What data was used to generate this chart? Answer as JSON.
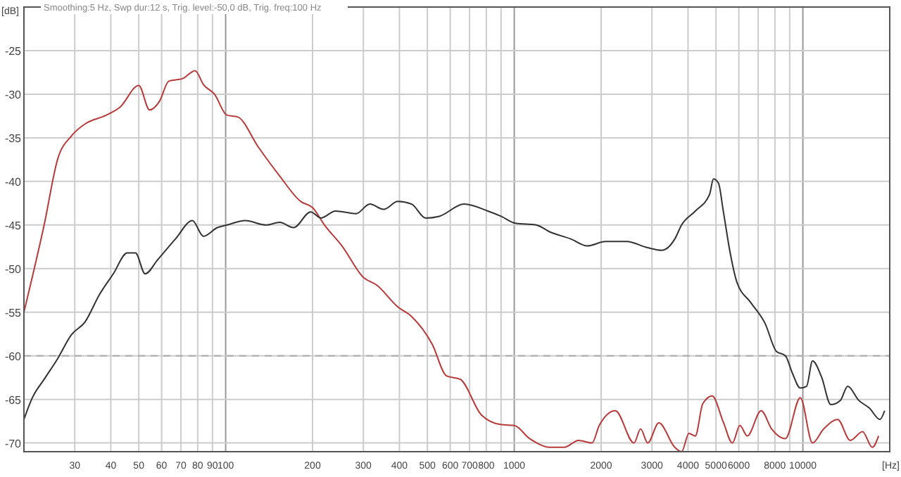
{
  "chart_data": {
    "type": "line",
    "title": "Smoothing:5 Hz, Swp dur:12 s, Trig. level:-50,0 dB, Trig. freq:100 Hz",
    "xlabel": "[Hz]",
    "ylabel": "[dB]",
    "log": "x",
    "grid": true,
    "marker": "none",
    "line_style": "solid",
    "xlim": [
      20,
      20000
    ],
    "ylim": [
      -71,
      -20
    ],
    "xticks": [
      30,
      40,
      50,
      60,
      70,
      80,
      90,
      100,
      200,
      300,
      400,
      500,
      600,
      700,
      800,
      {
        "value": 900,
        "label": null
      },
      1000,
      2000,
      3000,
      4000,
      5000,
      6000,
      {
        "value": 7000,
        "label": null
      },
      8000,
      {
        "value": 9000,
        "label": null
      },
      10000
    ],
    "yticks": [
      -25,
      -30,
      -35,
      -40,
      -45,
      -50,
      -55,
      -60,
      -65,
      -70
    ],
    "ref_lines": [
      {
        "axis": "y",
        "value": -60,
        "line_style": "dashed",
        "color": "#aaaaaa"
      }
    ],
    "series": [
      {
        "color": "#b83a3a",
        "x": [
          20,
          23.5,
          26.2,
          29.2,
          32.6,
          38.6,
          43,
          50,
          54.5,
          59,
          63.5,
          71,
          78.4,
          83.8,
          91.5,
          101,
          110,
          130,
          154,
          182,
          200,
          220,
          253,
          300,
          334,
          395,
          441,
          520,
          582,
          650,
          770,
          901,
          1000,
          1130,
          1330,
          1490,
          1670,
          1860,
          1970,
          2240,
          2600,
          2740,
          2900,
          3170,
          3600,
          3800,
          4030,
          4240,
          4500,
          4850,
          5300,
          5700,
          6050,
          6420,
          7170,
          7800,
          8700,
          9800,
          10800,
          11800,
          13200,
          14600,
          16100,
          17400,
          18300
        ],
        "values": [
          -55,
          -45,
          -37.4,
          -34.8,
          -33.4,
          -32.4,
          -31.5,
          -29,
          -31.8,
          -30.8,
          -28.5,
          -28.2,
          -27.3,
          -28.9,
          -30,
          -32.4,
          -32.6,
          -36.1,
          -39.4,
          -42.3,
          -43,
          -45,
          -47.4,
          -51,
          -51.9,
          -54.4,
          -55.5,
          -58.7,
          -62.3,
          -62.7,
          -66.8,
          -67.9,
          -68,
          -69.5,
          -70.5,
          -70.5,
          -69.7,
          -70,
          -68,
          -66.3,
          -70,
          -68.4,
          -70,
          -67.7,
          -70.5,
          -71,
          -68.9,
          -69.2,
          -65.5,
          -64.6,
          -67.6,
          -70,
          -68,
          -69.2,
          -66.3,
          -68.4,
          -69.5,
          -64.8,
          -70,
          -68.4,
          -67.3,
          -69.7,
          -68.7,
          -70.5,
          -69.2
        ]
      },
      {
        "color": "#333333",
        "x": [
          20,
          21.4,
          23.5,
          26.2,
          29.2,
          32.6,
          36.5,
          40.8,
          45.6,
          48.7,
          52.6,
          58.1,
          67,
          76.7,
          83.8,
          93.6,
          101,
          117,
          138,
          154,
          172,
          197,
          214,
          240,
          283,
          316,
          353,
          395,
          441,
          493,
          550,
          670,
          810,
          900,
          1010,
          1190,
          1330,
          1570,
          1790,
          2070,
          2450,
          2900,
          3240,
          3600,
          3800,
          4240,
          4750,
          4900,
          5100,
          5300,
          5600,
          5900,
          6600,
          7400,
          8100,
          8700,
          9200,
          9800,
          10300,
          10800,
          11600,
          12500,
          13500,
          14300,
          15600,
          17000,
          18500,
          19200
        ],
        "values": [
          -67.3,
          -64.8,
          -62.7,
          -60.3,
          -57.6,
          -56.1,
          -53,
          -50.6,
          -48.2,
          -48.2,
          -50.6,
          -49,
          -46.6,
          -44.5,
          -46.3,
          -45.3,
          -45,
          -44.5,
          -45,
          -44.7,
          -45.3,
          -43.5,
          -44.2,
          -43.4,
          -43.7,
          -42.6,
          -43.2,
          -42.3,
          -42.6,
          -44.2,
          -44,
          -42.6,
          -43.4,
          -44,
          -44.8,
          -45,
          -45.8,
          -46.6,
          -47.4,
          -46.9,
          -46.9,
          -47.6,
          -47.9,
          -46.6,
          -45,
          -43.4,
          -41.5,
          -39.7,
          -40.2,
          -43.4,
          -48.2,
          -51.5,
          -53.9,
          -56.3,
          -59.5,
          -60,
          -62,
          -63.7,
          -63.5,
          -60.6,
          -62.4,
          -65.6,
          -65.1,
          -63.5,
          -65.1,
          -66,
          -67.3,
          -66.3
        ]
      }
    ]
  }
}
